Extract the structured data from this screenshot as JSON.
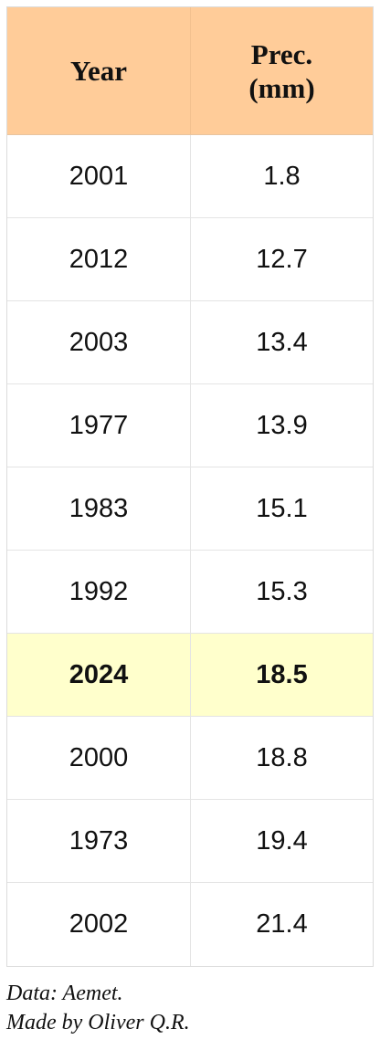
{
  "chart_data": {
    "type": "table",
    "columns": [
      "Year",
      "Prec. (mm)"
    ],
    "header": {
      "year": "Year",
      "prec_line1": "Prec.",
      "prec_line2": "(mm)"
    },
    "rows": [
      {
        "year": "2001",
        "prec": "1.8",
        "highlight": false
      },
      {
        "year": "2012",
        "prec": "12.7",
        "highlight": false
      },
      {
        "year": "2003",
        "prec": "13.4",
        "highlight": false
      },
      {
        "year": "1977",
        "prec": "13.9",
        "highlight": false
      },
      {
        "year": "1983",
        "prec": "15.1",
        "highlight": false
      },
      {
        "year": "1992",
        "prec": "15.3",
        "highlight": false
      },
      {
        "year": "2024",
        "prec": "18.5",
        "highlight": true
      },
      {
        "year": "2000",
        "prec": "18.8",
        "highlight": false
      },
      {
        "year": "1973",
        "prec": "19.4",
        "highlight": false
      },
      {
        "year": "2002",
        "prec": "21.4",
        "highlight": false
      }
    ],
    "colors": {
      "header_background": "#ffcc99",
      "highlight_background": "#ffffcc"
    }
  },
  "footer": {
    "source": "Data: Aemet.",
    "credit": "Made by Oliver Q.R."
  }
}
